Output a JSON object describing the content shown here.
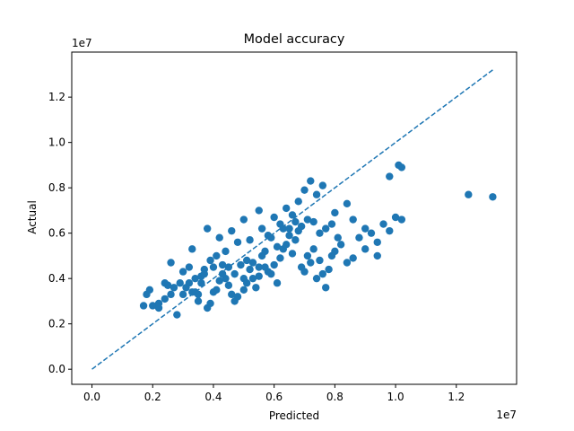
{
  "chart_data": {
    "type": "scatter",
    "title": "Model accuracy",
    "xlabel": "Predicted",
    "ylabel": "Actual",
    "x_offset_label": "1e7",
    "y_offset_label": "1e7",
    "xlim": [
      -0.0666,
      1.3986
    ],
    "ylim": [
      -0.0666,
      1.3986
    ],
    "xticks": [
      0.0,
      0.2,
      0.4,
      0.6,
      0.8,
      1.0,
      1.2
    ],
    "yticks": [
      0.0,
      0.2,
      0.4,
      0.6,
      0.8,
      1.0,
      1.2
    ],
    "xtick_labels": [
      "0.0",
      "0.2",
      "0.4",
      "0.6",
      "0.8",
      "1.0",
      "1.2"
    ],
    "ytick_labels": [
      "0.0",
      "0.2",
      "0.4",
      "0.6",
      "0.8",
      "1.0",
      "1.2"
    ],
    "grid": false,
    "point_color": "#1f77b4",
    "reference_line": {
      "style": "dashed",
      "color": "#1f77b4",
      "from": [
        0.0,
        0.0
      ],
      "to": [
        1.32,
        1.32
      ]
    },
    "points": [
      [
        0.17,
        0.28
      ],
      [
        0.18,
        0.33
      ],
      [
        0.19,
        0.35
      ],
      [
        0.2,
        0.28
      ],
      [
        0.22,
        0.29
      ],
      [
        0.24,
        0.38
      ],
      [
        0.25,
        0.37
      ],
      [
        0.27,
        0.36
      ],
      [
        0.26,
        0.47
      ],
      [
        0.28,
        0.24
      ],
      [
        0.29,
        0.38
      ],
      [
        0.3,
        0.33
      ],
      [
        0.31,
        0.36
      ],
      [
        0.33,
        0.53
      ],
      [
        0.32,
        0.45
      ],
      [
        0.34,
        0.4
      ],
      [
        0.35,
        0.3
      ],
      [
        0.36,
        0.41
      ],
      [
        0.37,
        0.44
      ],
      [
        0.38,
        0.27
      ],
      [
        0.39,
        0.29
      ],
      [
        0.4,
        0.34
      ],
      [
        0.41,
        0.35
      ],
      [
        0.42,
        0.39
      ],
      [
        0.43,
        0.46
      ],
      [
        0.44,
        0.4
      ],
      [
        0.45,
        0.37
      ],
      [
        0.46,
        0.33
      ],
      [
        0.47,
        0.3
      ],
      [
        0.48,
        0.32
      ],
      [
        0.5,
        0.35
      ],
      [
        0.5,
        0.4
      ],
      [
        0.51,
        0.48
      ],
      [
        0.52,
        0.44
      ],
      [
        0.53,
        0.47
      ],
      [
        0.54,
        0.36
      ],
      [
        0.55,
        0.41
      ],
      [
        0.56,
        0.5
      ],
      [
        0.57,
        0.52
      ],
      [
        0.58,
        0.43
      ],
      [
        0.59,
        0.42
      ],
      [
        0.6,
        0.46
      ],
      [
        0.61,
        0.38
      ],
      [
        0.62,
        0.49
      ],
      [
        0.63,
        0.53
      ],
      [
        0.64,
        0.55
      ],
      [
        0.65,
        0.59
      ],
      [
        0.66,
        0.51
      ],
      [
        0.67,
        0.57
      ],
      [
        0.68,
        0.61
      ],
      [
        0.69,
        0.45
      ],
      [
        0.7,
        0.43
      ],
      [
        0.71,
        0.5
      ],
      [
        0.72,
        0.47
      ],
      [
        0.73,
        0.53
      ],
      [
        0.74,
        0.4
      ],
      [
        0.75,
        0.48
      ],
      [
        0.76,
        0.42
      ],
      [
        0.77,
        0.36
      ],
      [
        0.78,
        0.44
      ],
      [
        0.79,
        0.5
      ],
      [
        0.8,
        0.52
      ],
      [
        0.82,
        0.55
      ],
      [
        0.84,
        0.47
      ],
      [
        0.86,
        0.49
      ],
      [
        0.88,
        0.58
      ],
      [
        0.9,
        0.62
      ],
      [
        0.92,
        0.6
      ],
      [
        0.94,
        0.56
      ],
      [
        0.96,
        0.64
      ],
      [
        0.98,
        0.61
      ],
      [
        1.0,
        0.67
      ],
      [
        1.02,
        0.66
      ],
      [
        0.55,
        0.7
      ],
      [
        0.6,
        0.67
      ],
      [
        0.48,
        0.56
      ],
      [
        0.44,
        0.52
      ],
      [
        0.4,
        0.45
      ],
      [
        0.36,
        0.38
      ],
      [
        0.34,
        0.34
      ],
      [
        0.38,
        0.62
      ],
      [
        0.42,
        0.58
      ],
      [
        0.46,
        0.61
      ],
      [
        0.5,
        0.66
      ],
      [
        0.52,
        0.57
      ],
      [
        0.56,
        0.62
      ],
      [
        0.58,
        0.59
      ],
      [
        0.62,
        0.64
      ],
      [
        0.64,
        0.71
      ],
      [
        0.66,
        0.68
      ],
      [
        0.68,
        0.74
      ],
      [
        0.7,
        0.79
      ],
      [
        0.72,
        0.83
      ],
      [
        0.74,
        0.77
      ],
      [
        0.76,
        0.81
      ],
      [
        0.8,
        0.69
      ],
      [
        0.84,
        0.73
      ],
      [
        0.86,
        0.66
      ],
      [
        0.9,
        0.53
      ],
      [
        0.94,
        0.5
      ],
      [
        0.98,
        0.85
      ],
      [
        1.01,
        0.9
      ],
      [
        1.02,
        0.89
      ],
      [
        1.24,
        0.77
      ],
      [
        1.32,
        0.76
      ],
      [
        0.22,
        0.27
      ],
      [
        0.24,
        0.31
      ],
      [
        0.26,
        0.33
      ],
      [
        0.3,
        0.43
      ],
      [
        0.32,
        0.38
      ],
      [
        0.33,
        0.34
      ],
      [
        0.35,
        0.33
      ],
      [
        0.37,
        0.42
      ],
      [
        0.39,
        0.48
      ],
      [
        0.41,
        0.5
      ],
      [
        0.43,
        0.42
      ],
      [
        0.45,
        0.45
      ],
      [
        0.47,
        0.42
      ],
      [
        0.49,
        0.46
      ],
      [
        0.51,
        0.38
      ],
      [
        0.53,
        0.4
      ],
      [
        0.55,
        0.45
      ],
      [
        0.57,
        0.45
      ],
      [
        0.59,
        0.58
      ],
      [
        0.61,
        0.54
      ],
      [
        0.63,
        0.62
      ],
      [
        0.65,
        0.62
      ],
      [
        0.67,
        0.65
      ],
      [
        0.69,
        0.63
      ],
      [
        0.71,
        0.66
      ],
      [
        0.73,
        0.65
      ],
      [
        0.75,
        0.6
      ],
      [
        0.77,
        0.62
      ],
      [
        0.79,
        0.64
      ],
      [
        0.81,
        0.58
      ]
    ]
  }
}
